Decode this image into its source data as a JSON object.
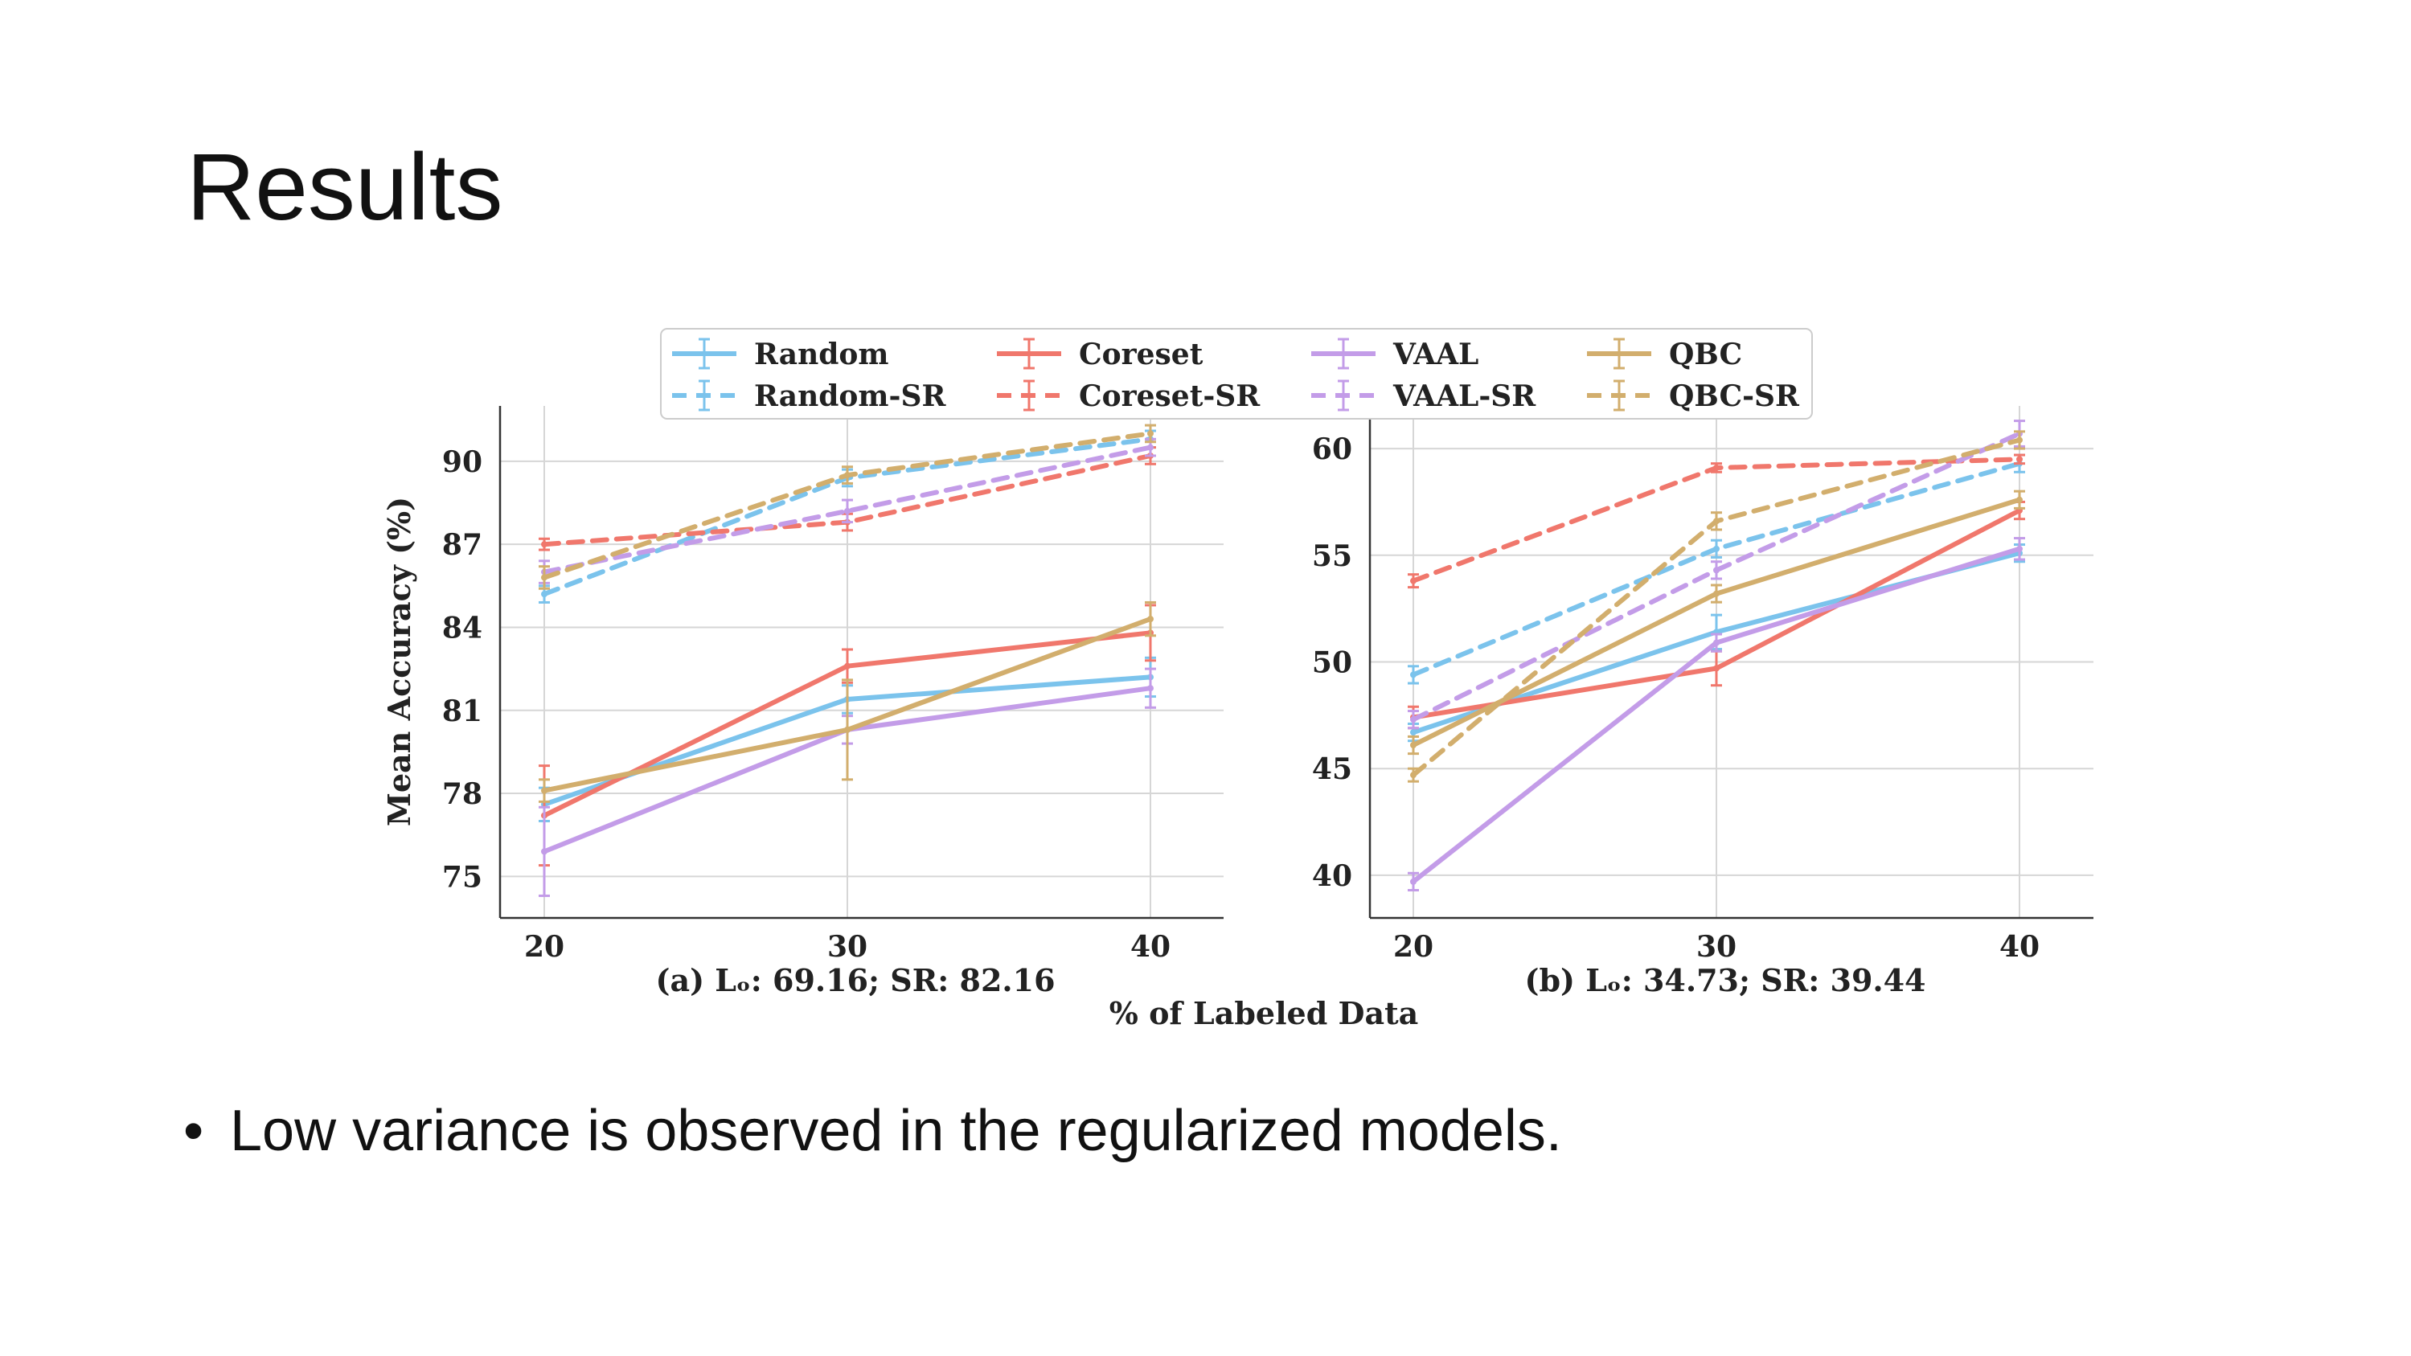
{
  "slide": {
    "title": "Results",
    "bullet": "Low variance is observed in the regularized models."
  },
  "chart_data": [
    {
      "type": "line",
      "subtitle": "(a) Lₒ: 69.16; SR: 82.16",
      "xlabel": "% of Labeled Data",
      "ylabel": "Mean Accuracy (%)",
      "x": [
        20,
        30,
        40
      ],
      "xticks": [
        20,
        30,
        40
      ],
      "yticks": [
        75,
        78,
        81,
        84,
        87,
        90
      ],
      "ylim": [
        73.5,
        92
      ],
      "grid": true,
      "series": [
        {
          "name": "Random",
          "color": "#7bc3ec",
          "dash": false,
          "values": [
            77.6,
            81.4,
            82.2
          ],
          "err": [
            0.6,
            0.5,
            0.7
          ]
        },
        {
          "name": "Coreset",
          "color": "#f0776c",
          "dash": false,
          "values": [
            77.2,
            82.6,
            83.8
          ],
          "err": [
            1.8,
            0.6,
            1.0
          ]
        },
        {
          "name": "VAAL",
          "color": "#c39ce8",
          "dash": false,
          "values": [
            75.9,
            80.3,
            81.8
          ],
          "err": [
            1.6,
            0.5,
            0.7
          ]
        },
        {
          "name": "QBC",
          "color": "#d2ae6d",
          "dash": false,
          "values": [
            78.1,
            80.3,
            84.3
          ],
          "err": [
            0.4,
            1.8,
            0.6
          ]
        },
        {
          "name": "Random-SR",
          "color": "#7bc3ec",
          "dash": true,
          "values": [
            85.2,
            89.4,
            90.8
          ],
          "err": [
            0.3,
            0.3,
            0.3
          ]
        },
        {
          "name": "Coreset-SR",
          "color": "#f0776c",
          "dash": true,
          "values": [
            87.0,
            87.8,
            90.2
          ],
          "err": [
            0.2,
            0.3,
            0.3
          ]
        },
        {
          "name": "VAAL-SR",
          "color": "#c39ce8",
          "dash": true,
          "values": [
            86.0,
            88.2,
            90.5
          ],
          "err": [
            0.4,
            0.4,
            0.3
          ]
        },
        {
          "name": "QBC-SR",
          "color": "#d2ae6d",
          "dash": true,
          "values": [
            85.8,
            89.5,
            91.0
          ],
          "err": [
            0.4,
            0.3,
            0.3
          ]
        }
      ]
    },
    {
      "type": "line",
      "subtitle": "(b) Lₒ: 34.73; SR: 39.44",
      "x": [
        20,
        30,
        40
      ],
      "xticks": [
        20,
        30,
        40
      ],
      "yticks": [
        40,
        45,
        50,
        55,
        60
      ],
      "ylim": [
        38,
        62
      ],
      "grid": true,
      "series": [
        {
          "name": "Random",
          "color": "#7bc3ec",
          "dash": false,
          "values": [
            46.7,
            51.4,
            55.1
          ],
          "err": [
            0.4,
            0.8,
            0.4
          ]
        },
        {
          "name": "Coreset",
          "color": "#f0776c",
          "dash": false,
          "values": [
            47.4,
            49.7,
            57.1
          ],
          "err": [
            0.5,
            0.8,
            0.4
          ]
        },
        {
          "name": "VAAL",
          "color": "#c39ce8",
          "dash": false,
          "values": [
            39.7,
            50.9,
            55.3
          ],
          "err": [
            0.4,
            0.4,
            0.5
          ]
        },
        {
          "name": "QBC",
          "color": "#d2ae6d",
          "dash": false,
          "values": [
            46.1,
            53.2,
            57.6
          ],
          "err": [
            0.4,
            0.4,
            0.4
          ]
        },
        {
          "name": "Random-SR",
          "color": "#7bc3ec",
          "dash": true,
          "values": [
            49.4,
            55.3,
            59.3
          ],
          "err": [
            0.4,
            0.4,
            0.4
          ]
        },
        {
          "name": "Coreset-SR",
          "color": "#f0776c",
          "dash": true,
          "values": [
            53.8,
            59.1,
            59.5
          ],
          "err": [
            0.3,
            0.2,
            0.2
          ]
        },
        {
          "name": "VAAL-SR",
          "color": "#c39ce8",
          "dash": true,
          "values": [
            47.3,
            54.3,
            60.7
          ],
          "err": [
            0.4,
            0.4,
            0.6
          ]
        },
        {
          "name": "QBC-SR",
          "color": "#d2ae6d",
          "dash": true,
          "values": [
            44.7,
            56.6,
            60.4
          ],
          "err": [
            0.3,
            0.4,
            0.4
          ]
        }
      ]
    }
  ],
  "legend": {
    "placement": "top-center",
    "items": [
      "Random",
      "Coreset",
      "VAAL",
      "QBC",
      "Random-SR",
      "Coreset-SR",
      "VAAL-SR",
      "QBC-SR"
    ]
  }
}
